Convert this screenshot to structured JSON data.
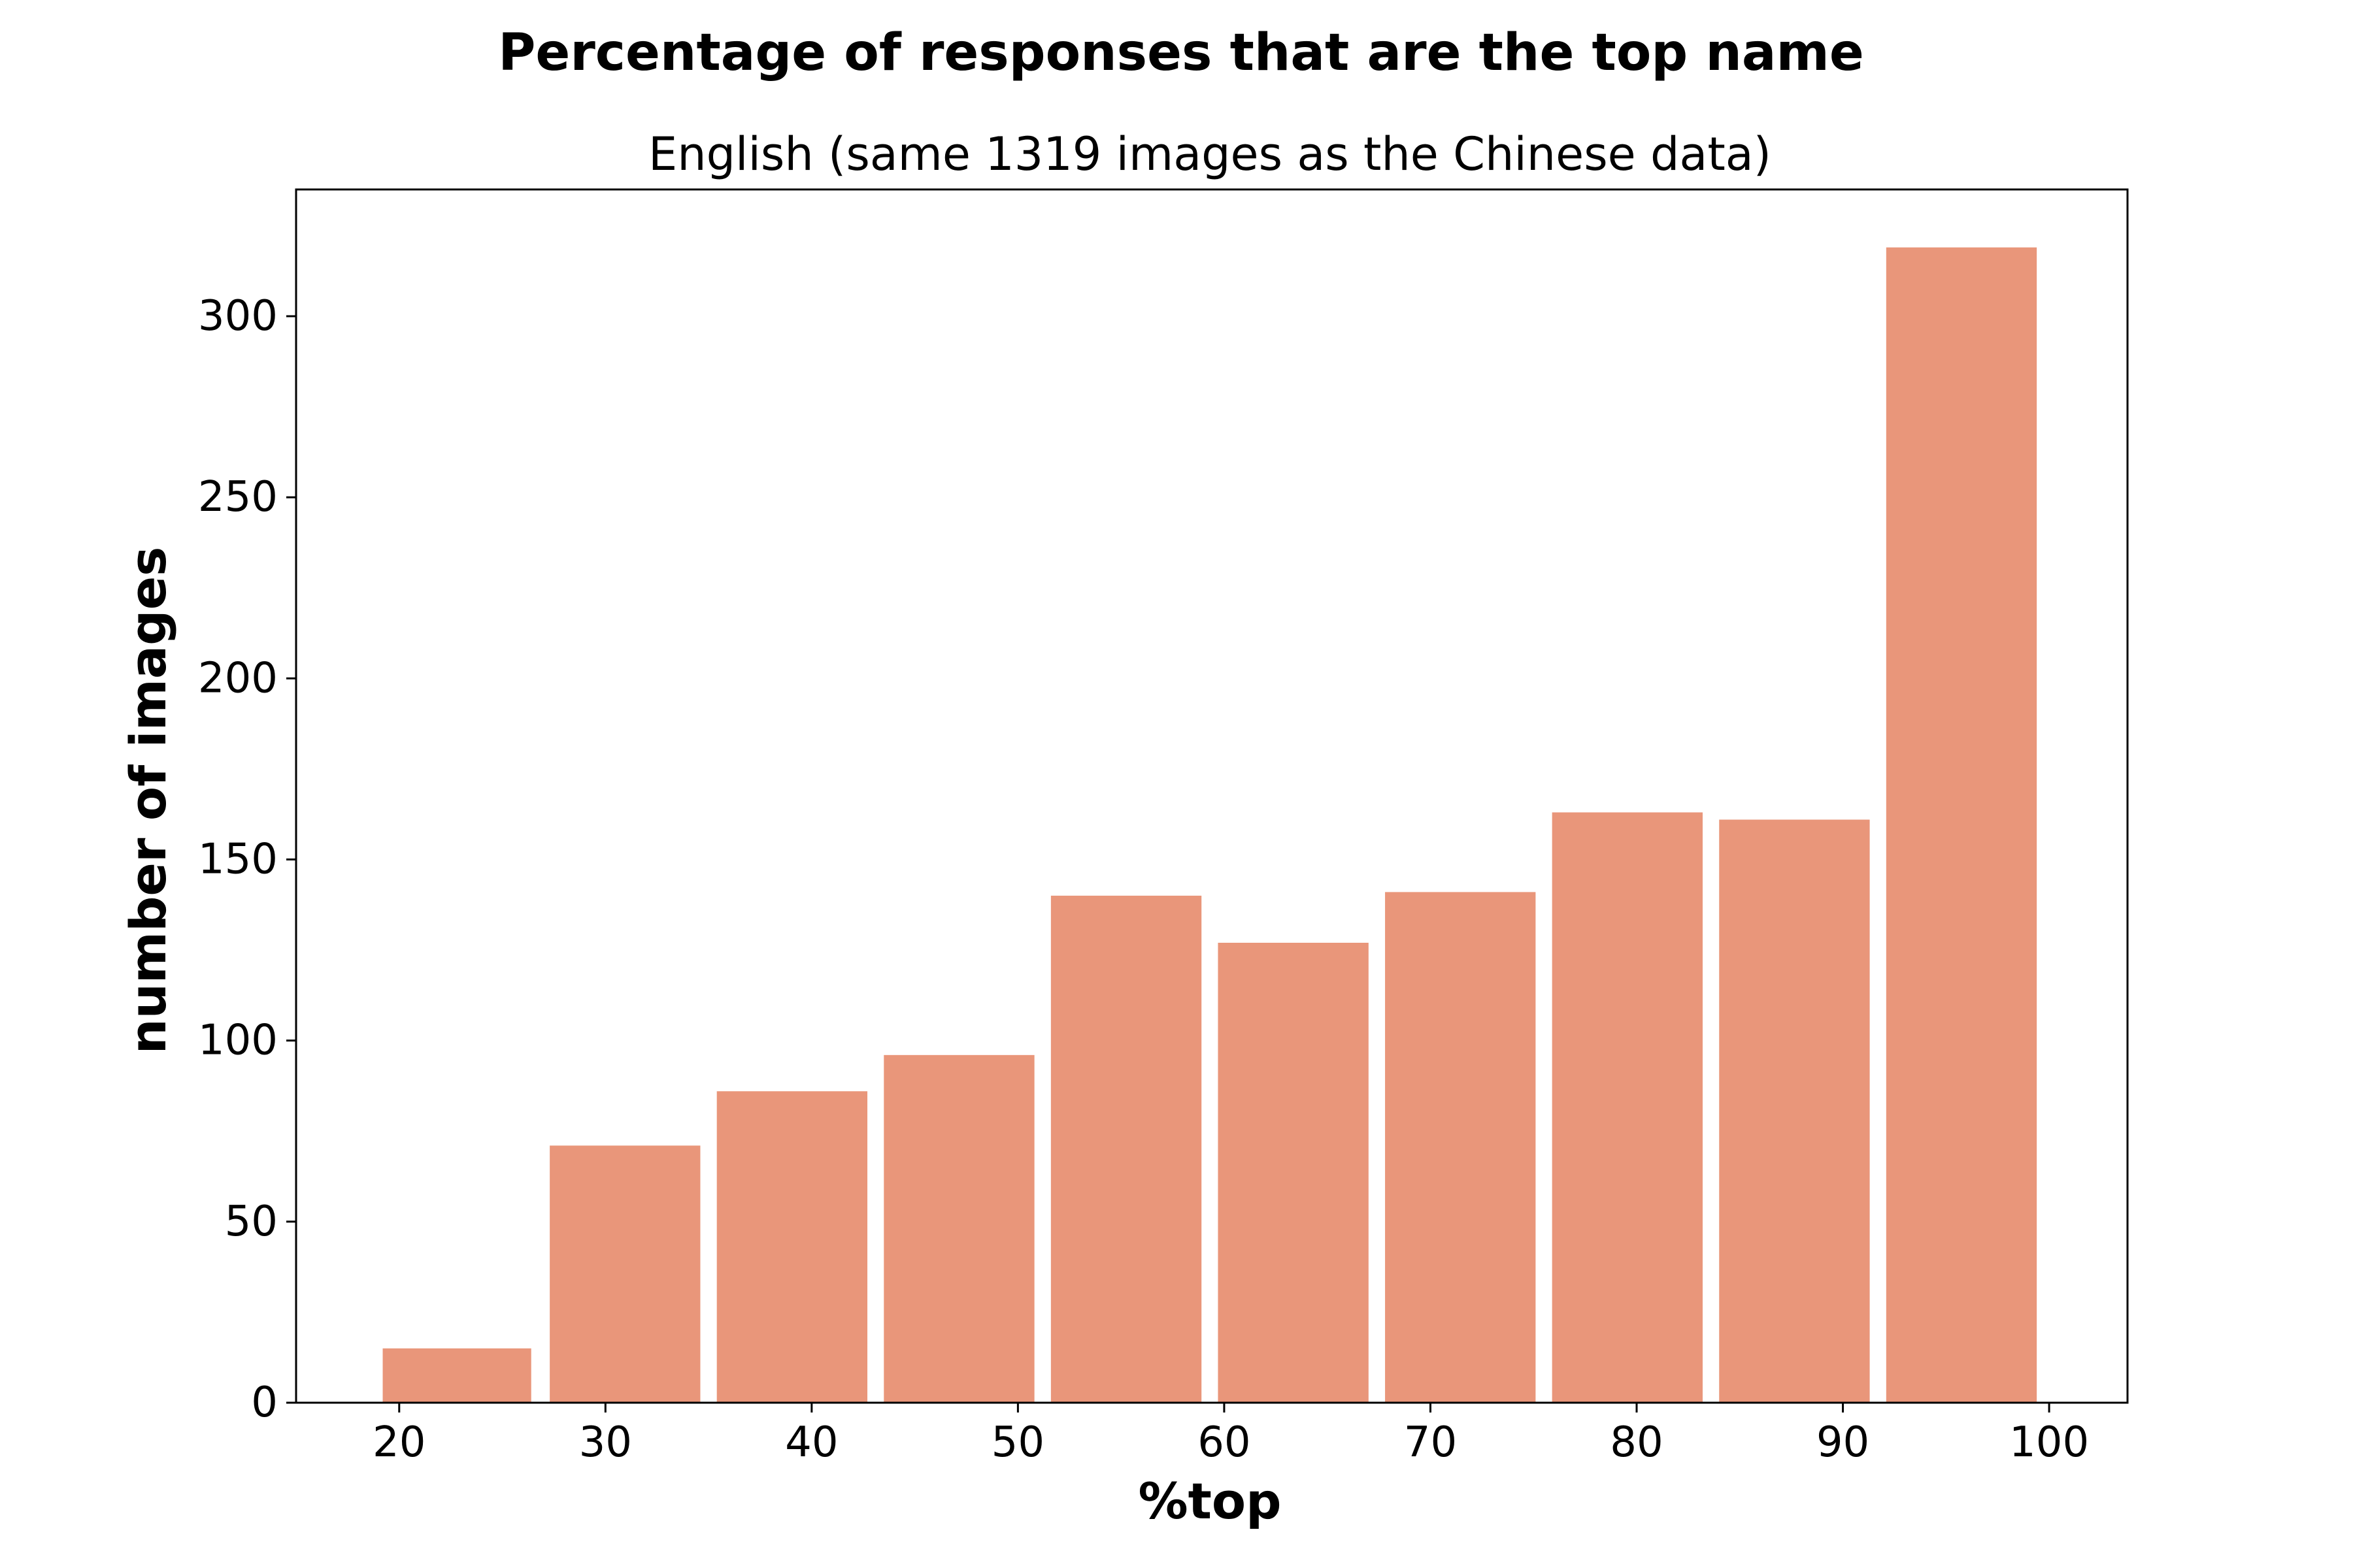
{
  "chart_data": {
    "type": "bar",
    "title": "Percentage of responses that are the top name",
    "subtitle": "English (same 1319 images as the Chinese data)",
    "xlabel": "%top",
    "ylabel": "number of images",
    "bins": [
      [
        19.2,
        26.4
      ],
      [
        27.3,
        34.6
      ],
      [
        35.4,
        42.7
      ],
      [
        43.5,
        50.8
      ],
      [
        51.6,
        58.9
      ],
      [
        59.7,
        67.0
      ],
      [
        67.8,
        75.1
      ],
      [
        75.9,
        83.2
      ],
      [
        84.0,
        91.3
      ],
      [
        92.1,
        99.4
      ]
    ],
    "values": [
      15,
      71,
      86,
      96,
      140,
      127,
      141,
      163,
      161,
      319
    ],
    "xlim": [
      15,
      103.8
    ],
    "ylim": [
      0,
      335
    ],
    "xticks": [
      20,
      30,
      40,
      50,
      60,
      70,
      80,
      90,
      100
    ],
    "yticks": [
      0,
      50,
      100,
      150,
      200,
      250,
      300
    ],
    "grid": false,
    "colors": {
      "bar": "#e9967a",
      "axis": "#000000",
      "background": "#ffffff"
    }
  }
}
